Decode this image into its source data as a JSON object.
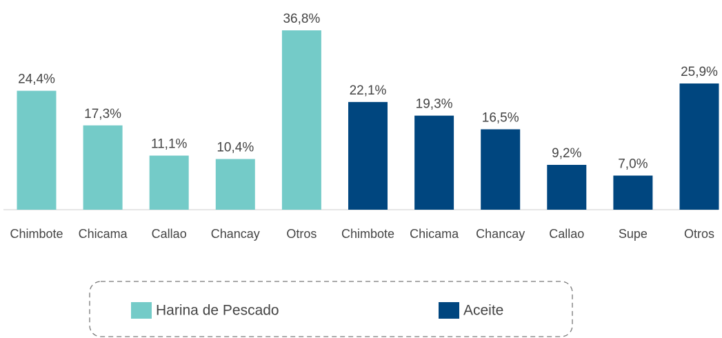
{
  "chart_data": {
    "type": "bar",
    "categories": [
      "Chimbote",
      "Chicama",
      "Callao",
      "Chancay",
      "Otros",
      "Chimbote",
      "Chicama",
      "Chancay",
      "Callao",
      "Supe",
      "Otros"
    ],
    "series": [
      {
        "name": "Harina de Pescado",
        "color": "#74cbc8",
        "values": [
          24.4,
          17.3,
          11.1,
          10.4,
          36.8,
          null,
          null,
          null,
          null,
          null,
          null
        ],
        "value_labels": [
          "24,4%",
          "17,3%",
          "11,1%",
          "10,4%",
          "36,8%",
          null,
          null,
          null,
          null,
          null,
          null
        ]
      },
      {
        "name": "Aceite",
        "color": "#00467f",
        "values": [
          null,
          null,
          null,
          null,
          null,
          22.1,
          19.3,
          16.5,
          9.2,
          7.0,
          25.9
        ],
        "value_labels": [
          null,
          null,
          null,
          null,
          null,
          "22,1%",
          "19,3%",
          "16,5%",
          "9,2%",
          "7,0%",
          "25,9%"
        ]
      }
    ],
    "legend": "bottom"
  }
}
